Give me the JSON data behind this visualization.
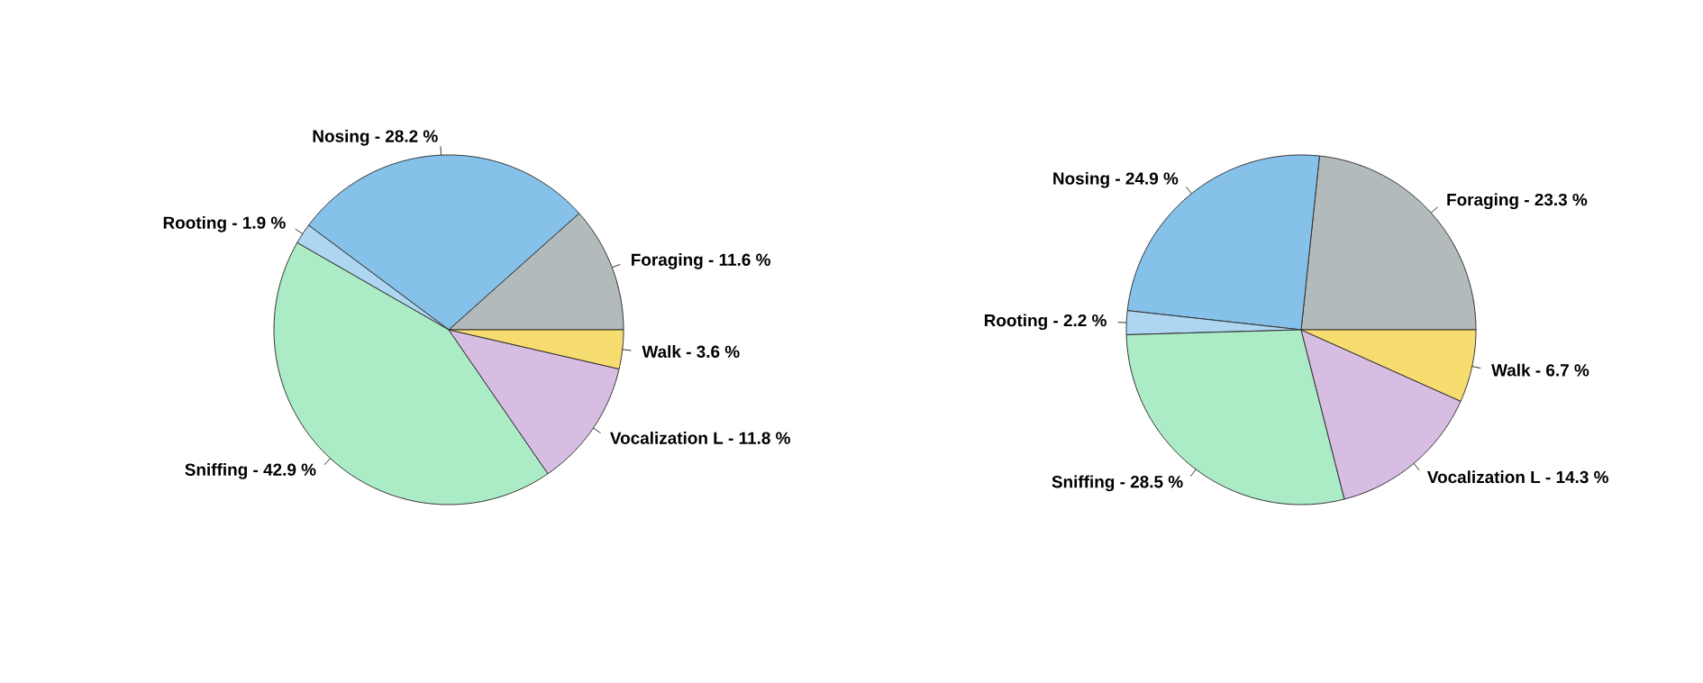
{
  "chart_data": [
    {
      "type": "pie",
      "categories": [
        "Foraging - 11.6 %",
        "Nosing - 28.2 %",
        "Rooting - 1.9 %",
        "Sniffing - 42.9 %",
        "Vocalization L - 11.8 %",
        "Walk - 3.6 %"
      ],
      "values": [
        11.6,
        28.2,
        1.9,
        42.9,
        11.8,
        3.6
      ],
      "colors": [
        "#b2babb",
        "#85c1e9",
        "#aed6f1",
        "#abebc6",
        "#d7bde2",
        "#f7dc6f"
      ]
    },
    {
      "type": "pie",
      "categories": [
        "Foraging - 23.3 %",
        "Nosing - 24.9 %",
        "Rooting - 2.2 %",
        "Sniffing - 28.5 %",
        "Vocalization L - 14.3 %",
        "Walk - 6.7 %"
      ],
      "values": [
        23.3,
        24.9,
        2.2,
        28.5,
        14.3,
        6.7
      ],
      "colors": [
        "#b2babb",
        "#85c1e9",
        "#aed6f1",
        "#abebc6",
        "#d7bde2",
        "#f7dc6f"
      ]
    }
  ]
}
